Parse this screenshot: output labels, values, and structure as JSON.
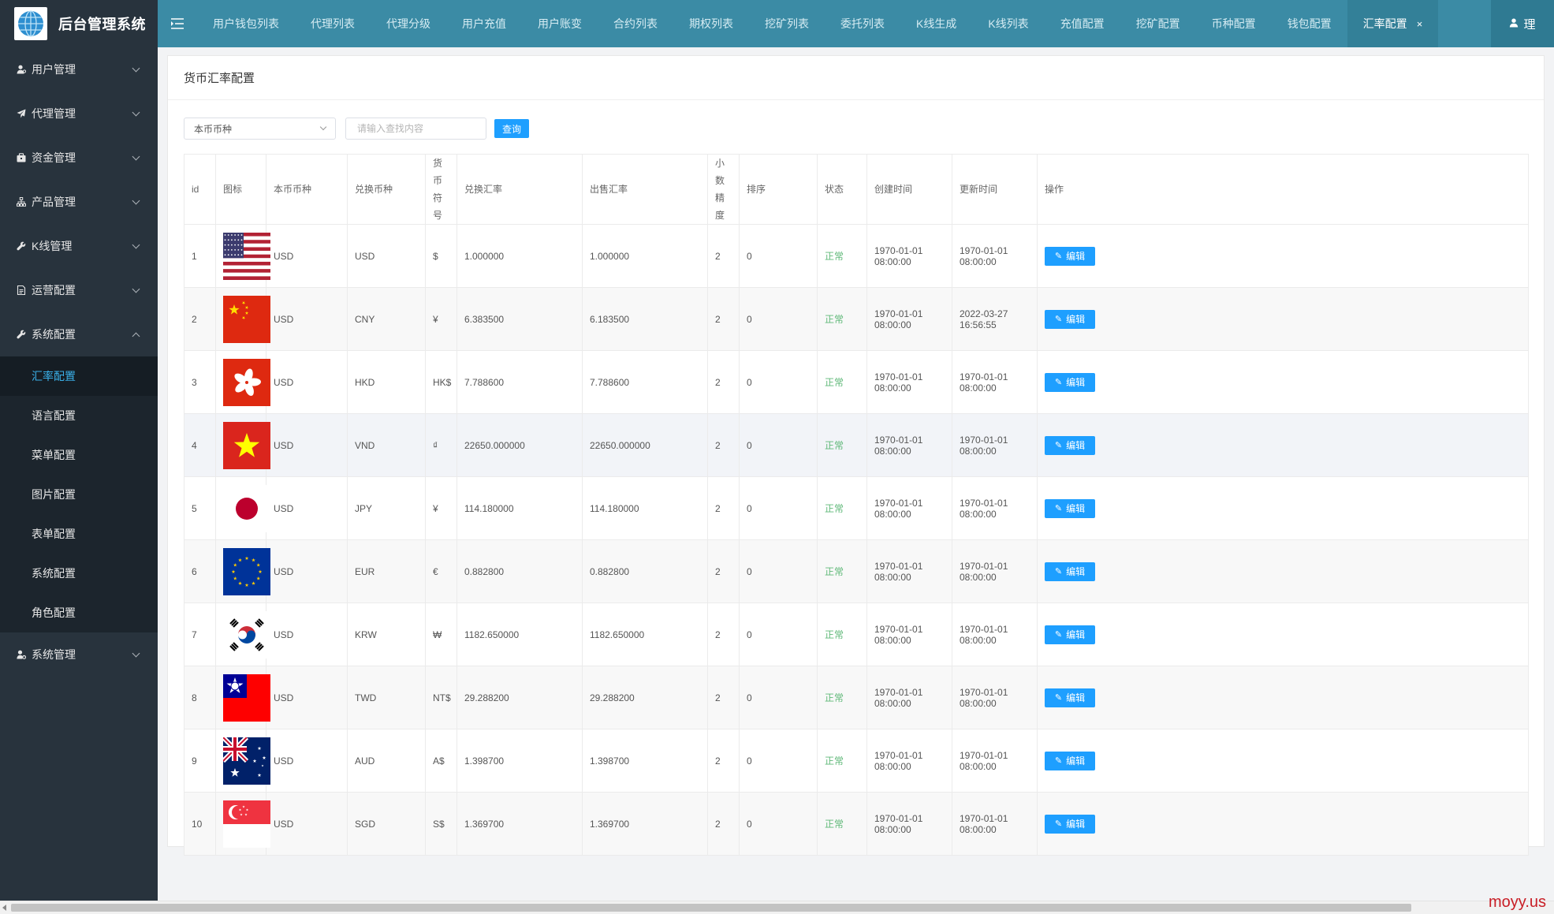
{
  "app": {
    "title": "后台管理系统",
    "user_label": "理"
  },
  "sidebar": {
    "menus": [
      {
        "label": "用户管理",
        "icon": "user-icon"
      },
      {
        "label": "代理管理",
        "icon": "paper-plane-icon"
      },
      {
        "label": "资金管理",
        "icon": "briefcase-icon"
      },
      {
        "label": "产品管理",
        "icon": "sitemap-icon"
      },
      {
        "label": "K线管理",
        "icon": "wrench-icon"
      },
      {
        "label": "运营配置",
        "icon": "document-icon"
      },
      {
        "label": "系统配置",
        "icon": "wrench-icon"
      },
      {
        "label": "系统管理",
        "icon": "user-gear-icon"
      }
    ],
    "system_sub": [
      {
        "label": "汇率配置",
        "active": true
      },
      {
        "label": "语言配置"
      },
      {
        "label": "菜单配置"
      },
      {
        "label": "图片配置"
      },
      {
        "label": "表单配置"
      },
      {
        "label": "系统配置"
      },
      {
        "label": "角色配置"
      }
    ]
  },
  "tabs": [
    {
      "label": "用户钱包列表"
    },
    {
      "label": "代理列表"
    },
    {
      "label": "代理分级"
    },
    {
      "label": "用户充值"
    },
    {
      "label": "用户账变"
    },
    {
      "label": "合约列表"
    },
    {
      "label": "期权列表"
    },
    {
      "label": "挖矿列表"
    },
    {
      "label": "委托列表"
    },
    {
      "label": "K线生成"
    },
    {
      "label": "K线列表"
    },
    {
      "label": "充值配置"
    },
    {
      "label": "挖矿配置"
    },
    {
      "label": "币种配置"
    },
    {
      "label": "钱包配置"
    },
    {
      "label": "汇率配置",
      "active": true,
      "close": "×"
    }
  ],
  "page": {
    "title": "货币汇率配置",
    "filter": {
      "select_value": "本币币种",
      "search_placeholder": "请输入查找内容",
      "search_button": "查询"
    }
  },
  "table": {
    "headers": {
      "id": "id",
      "icon": "图标",
      "base": "本币币种",
      "target": "兑换币种",
      "symbol": "货币符号",
      "rate": "兑换汇率",
      "sell": "出售汇率",
      "decimals": "小数精度",
      "sort": "排序",
      "status": "状态",
      "created": "创建时间",
      "updated": "更新时间",
      "action": "操作"
    },
    "edit_label": "编辑",
    "rows": [
      {
        "id": "1",
        "flag": "us",
        "base": "USD",
        "target": "USD",
        "symbol": "$",
        "rate": "1.000000",
        "sell": "1.000000",
        "decimals": "2",
        "sort": "0",
        "status": "正常",
        "created": "1970-01-01 08:00:00",
        "updated": "1970-01-01 08:00:00"
      },
      {
        "id": "2",
        "flag": "cn",
        "base": "USD",
        "target": "CNY",
        "symbol": "¥",
        "rate": "6.383500",
        "sell": "6.183500",
        "decimals": "2",
        "sort": "0",
        "status": "正常",
        "created": "1970-01-01 08:00:00",
        "updated": "2022-03-27 16:56:55"
      },
      {
        "id": "3",
        "flag": "hk",
        "base": "USD",
        "target": "HKD",
        "symbol": "HK$",
        "rate": "7.788600",
        "sell": "7.788600",
        "decimals": "2",
        "sort": "0",
        "status": "正常",
        "created": "1970-01-01 08:00:00",
        "updated": "1970-01-01 08:00:00"
      },
      {
        "id": "4",
        "flag": "vn",
        "base": "USD",
        "target": "VND",
        "symbol": "₫",
        "rate": "22650.000000",
        "sell": "22650.000000",
        "decimals": "2",
        "sort": "0",
        "status": "正常",
        "created": "1970-01-01 08:00:00",
        "updated": "1970-01-01 08:00:00"
      },
      {
        "id": "5",
        "flag": "jp",
        "base": "USD",
        "target": "JPY",
        "symbol": "¥",
        "rate": "114.180000",
        "sell": "114.180000",
        "decimals": "2",
        "sort": "0",
        "status": "正常",
        "created": "1970-01-01 08:00:00",
        "updated": "1970-01-01 08:00:00"
      },
      {
        "id": "6",
        "flag": "eu",
        "base": "USD",
        "target": "EUR",
        "symbol": "€",
        "rate": "0.882800",
        "sell": "0.882800",
        "decimals": "2",
        "sort": "0",
        "status": "正常",
        "created": "1970-01-01 08:00:00",
        "updated": "1970-01-01 08:00:00"
      },
      {
        "id": "7",
        "flag": "kr",
        "base": "USD",
        "target": "KRW",
        "symbol": "₩",
        "rate": "1182.650000",
        "sell": "1182.650000",
        "decimals": "2",
        "sort": "0",
        "status": "正常",
        "created": "1970-01-01 08:00:00",
        "updated": "1970-01-01 08:00:00"
      },
      {
        "id": "8",
        "flag": "tw",
        "base": "USD",
        "target": "TWD",
        "symbol": "NT$",
        "rate": "29.288200",
        "sell": "29.288200",
        "decimals": "2",
        "sort": "0",
        "status": "正常",
        "created": "1970-01-01 08:00:00",
        "updated": "1970-01-01 08:00:00"
      },
      {
        "id": "9",
        "flag": "au",
        "base": "USD",
        "target": "AUD",
        "symbol": "A$",
        "rate": "1.398700",
        "sell": "1.398700",
        "decimals": "2",
        "sort": "0",
        "status": "正常",
        "created": "1970-01-01 08:00:00",
        "updated": "1970-01-01 08:00:00"
      },
      {
        "id": "10",
        "flag": "sg",
        "base": "USD",
        "target": "SGD",
        "symbol": "S$",
        "rate": "1.369700",
        "sell": "1.369700",
        "decimals": "2",
        "sort": "0",
        "status": "正常",
        "created": "1970-01-01 08:00:00",
        "updated": "1970-01-01 08:00:00"
      }
    ]
  },
  "colors": {
    "sidebar": "#28333d",
    "topbar": "#3b8ba5",
    "accent": "#1e9fff",
    "status_ok": "#5fb878",
    "active_link": "#3ab0e8"
  },
  "watermark": "moyy.us"
}
